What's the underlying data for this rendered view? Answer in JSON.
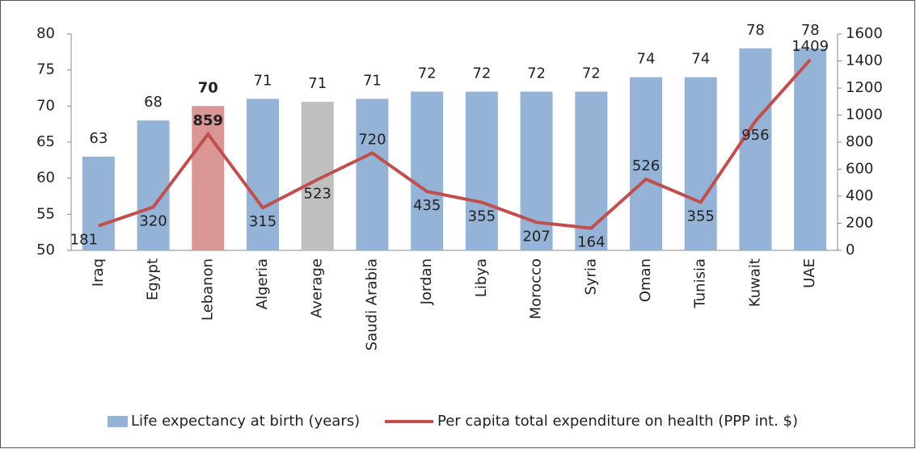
{
  "chart_data": {
    "type": "bar-line",
    "categories": [
      "Iraq",
      "Egypt",
      "Lebanon",
      "Algeria",
      "Average",
      "Saudi Arabia",
      "Jordan",
      "Libya",
      "Morocco",
      "Syria",
      "Oman",
      "Tunisia",
      "Kuwait",
      "UAE"
    ],
    "series": [
      {
        "name": "Life expectancy at birth (years)",
        "type": "bar",
        "color": "#95b3d7",
        "colors": [
          "#95b3d7",
          "#95b3d7",
          "#d99694",
          "#95b3d7",
          "#bfbfbf",
          "#95b3d7",
          "#95b3d7",
          "#95b3d7",
          "#95b3d7",
          "#95b3d7",
          "#95b3d7",
          "#95b3d7",
          "#95b3d7",
          "#95b3d7"
        ],
        "values": [
          63,
          68,
          70,
          71,
          70.6,
          71,
          72,
          72,
          72,
          72,
          74,
          74,
          78,
          78
        ],
        "value_labels": [
          "63",
          "68",
          "70",
          "71",
          "71",
          "71",
          "72",
          "72",
          "72",
          "72",
          "74",
          "74",
          "78",
          "78"
        ],
        "label_weights": [
          "normal",
          "normal",
          "bold",
          "normal",
          "normal",
          "normal",
          "normal",
          "normal",
          "normal",
          "normal",
          "normal",
          "normal",
          "normal",
          "normal"
        ]
      },
      {
        "name": "Per capita total expenditure on health (PPP int. $)",
        "type": "line",
        "axis": "y2",
        "color": "#c0504d",
        "values": [
          181,
          320,
          859,
          315,
          523,
          720,
          435,
          355,
          207,
          164,
          526,
          355,
          956,
          1409
        ],
        "label_weights": [
          "normal",
          "normal",
          "bold",
          "normal",
          "normal",
          "normal",
          "normal",
          "normal",
          "normal",
          "normal",
          "normal",
          "normal",
          "normal",
          "normal"
        ]
      }
    ],
    "ylim": [
      50,
      80
    ],
    "yticks": [
      50,
      55,
      60,
      65,
      70,
      75,
      80
    ],
    "y2lim": [
      0,
      1600
    ],
    "y2ticks": [
      0,
      200,
      400,
      600,
      800,
      1000,
      1200,
      1400,
      1600
    ],
    "legend": "bottom"
  }
}
